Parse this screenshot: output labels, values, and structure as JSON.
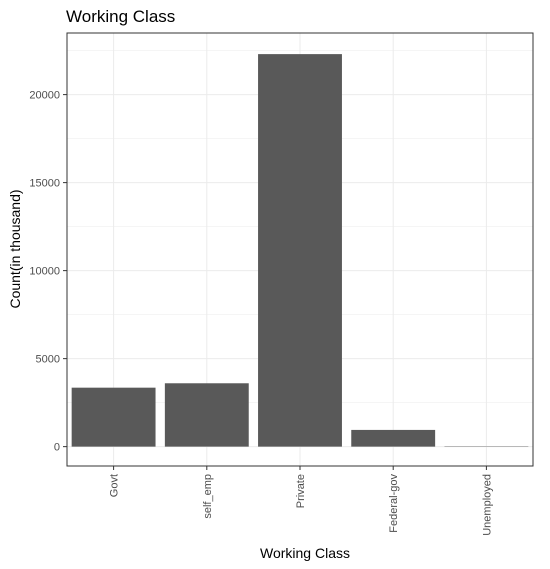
{
  "chart_data": {
    "type": "bar",
    "title": "Working Class",
    "xlabel": "Working Class",
    "ylabel": "Count(in thousand)",
    "categories": [
      "Govt",
      "self_emp",
      "Private",
      "Federal-gov",
      "Unemployed"
    ],
    "values": [
      3350,
      3600,
      22300,
      950,
      20
    ],
    "ylim": [
      -1100,
      23500
    ],
    "yticks": [
      0,
      5000,
      10000,
      15000,
      20000
    ],
    "ytick_labels": [
      "0",
      "5000",
      "10000",
      "15000",
      "20000"
    ],
    "grid": true,
    "bar_color": "#595959",
    "grid_color": "#ebebeb",
    "panel_border_color": "#333333"
  }
}
